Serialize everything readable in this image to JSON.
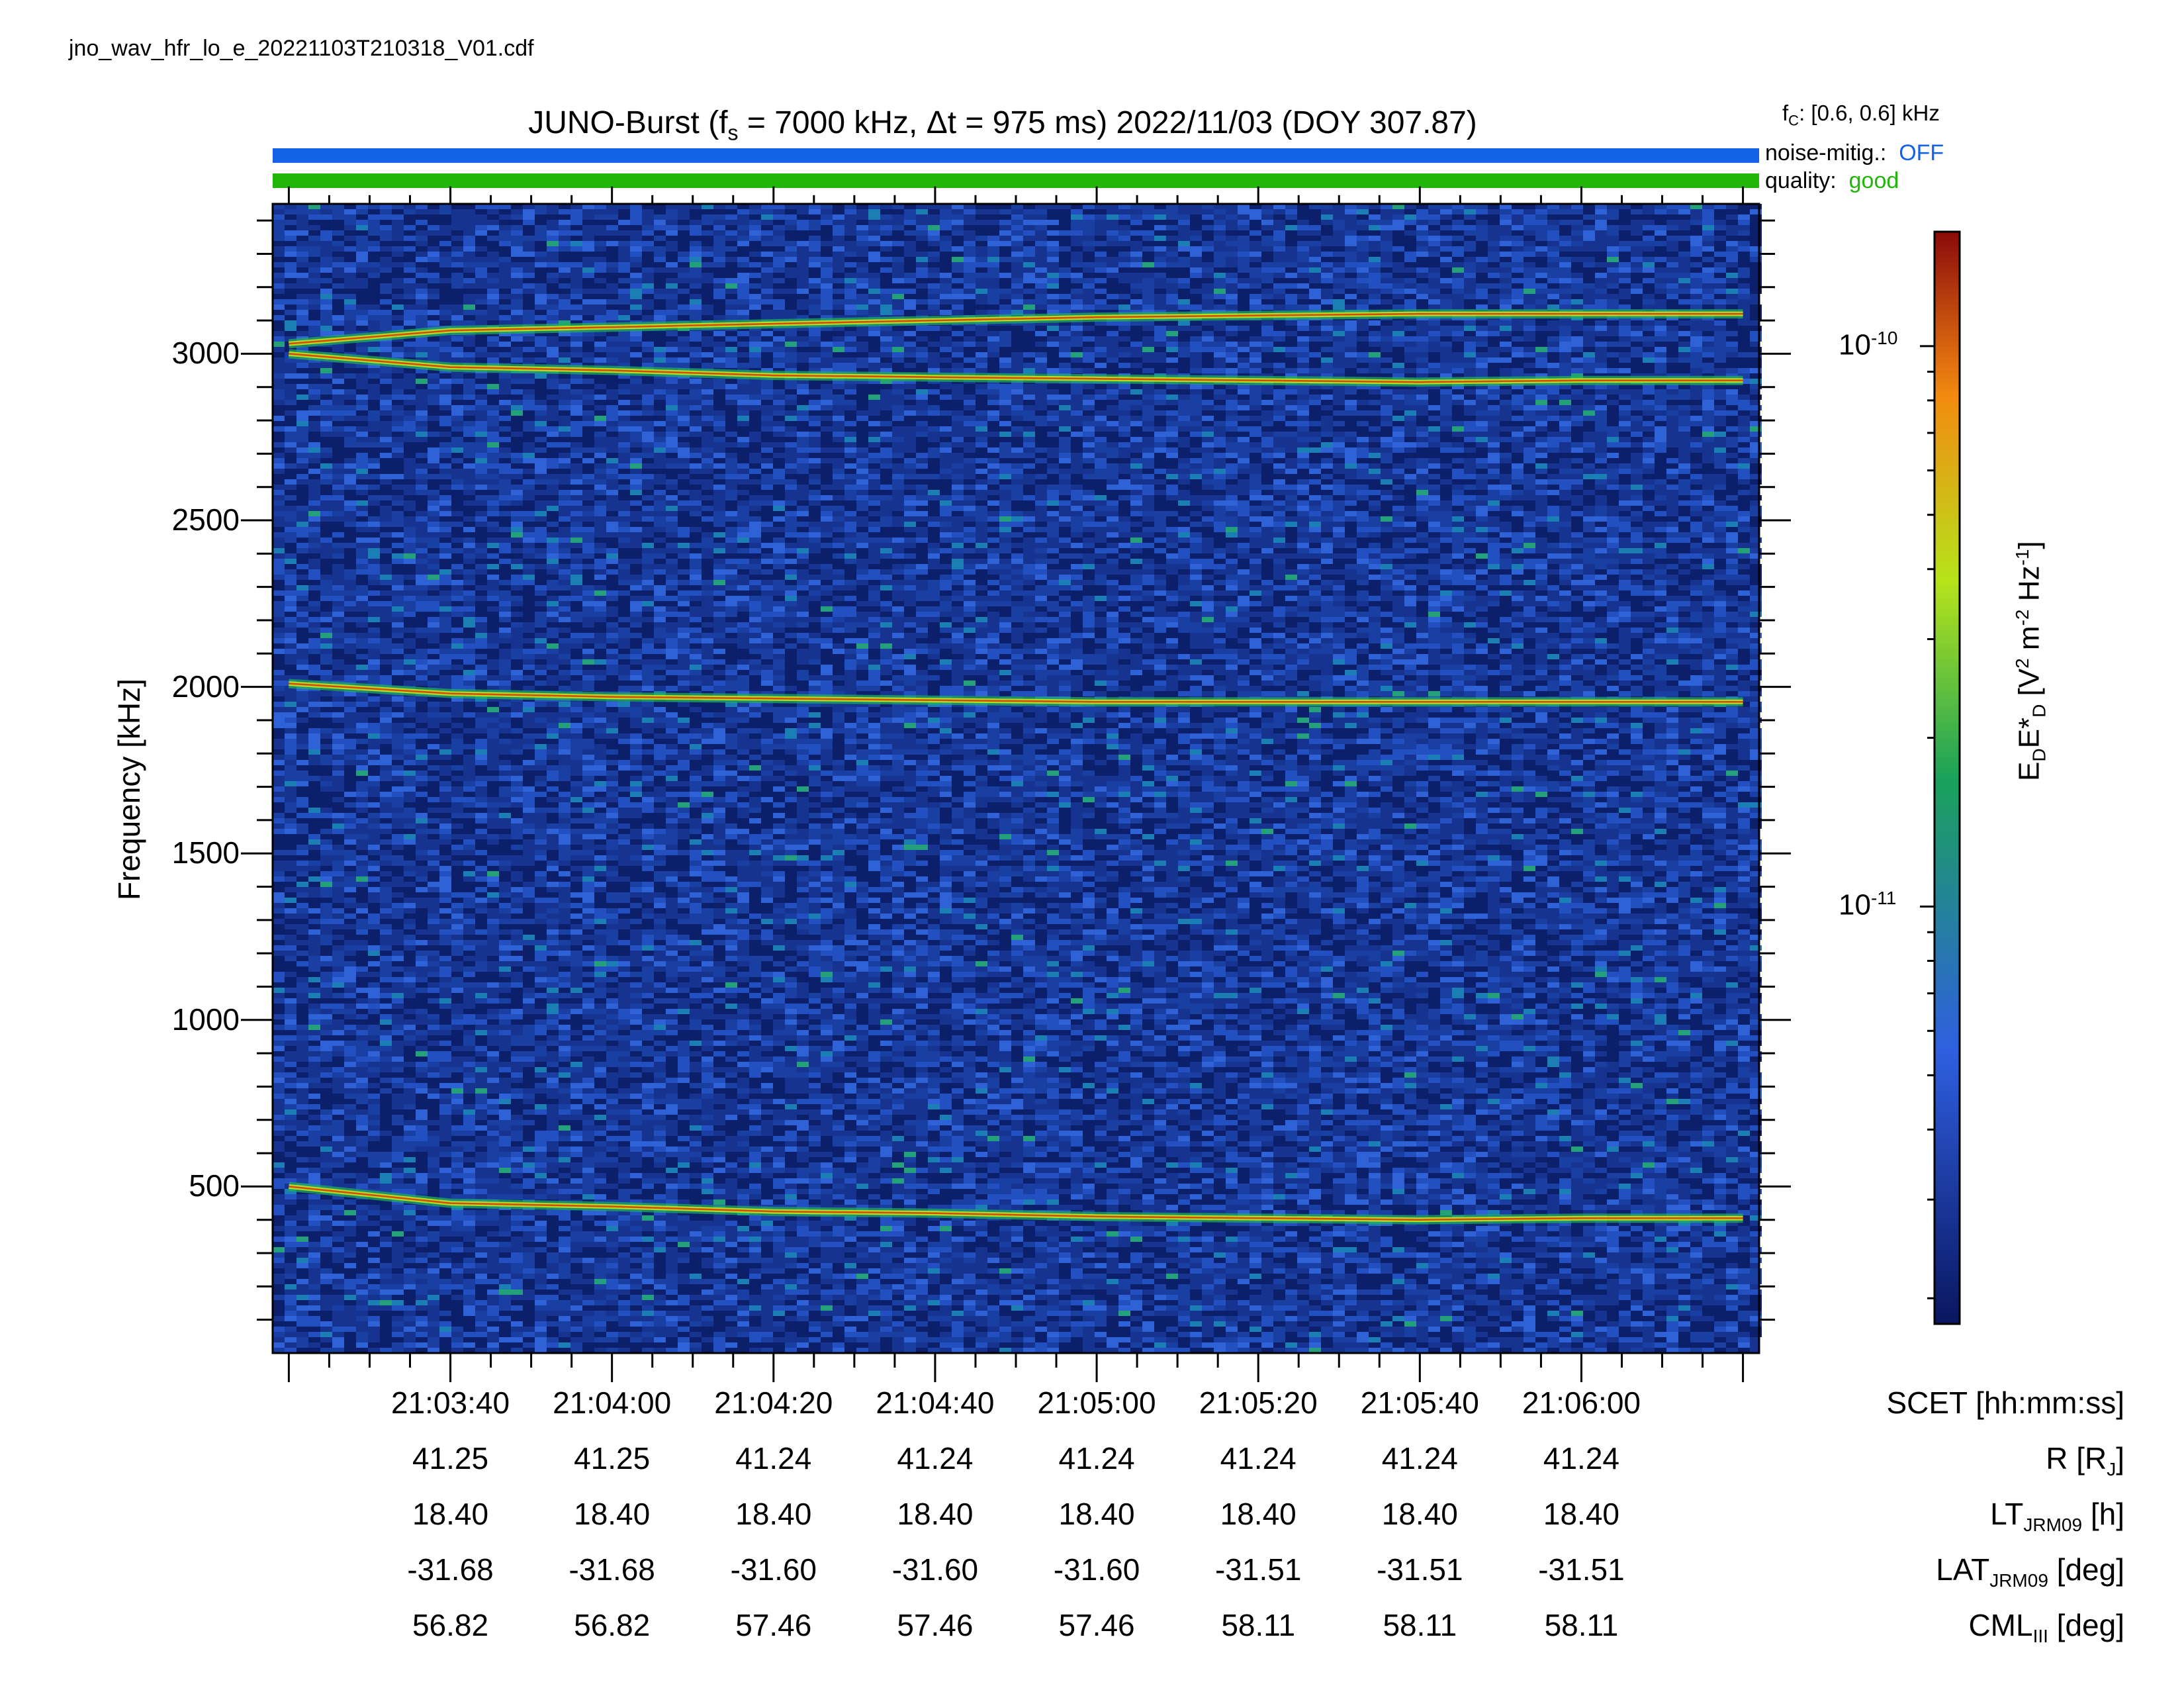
{
  "filename": "jno_wav_hfr_lo_e_20221103T210318_V01.cdf",
  "title": {
    "prefix": "JUNO-Burst (f",
    "fs_sub": "s",
    "middle": " = 7000 kHz, Δt = 975 ms)  2022/11/03 (DOY 307.87)"
  },
  "side_info": {
    "fc_prefix": "f",
    "fc_sub": "C",
    "fc_value": ": [0.6, 0.6] kHz",
    "noise_label": "noise-mitig.:",
    "noise_value": "OFF",
    "quality_label": "quality:",
    "quality_value": "good"
  },
  "colors": {
    "noise_bar": "#1463e6",
    "quality_bar": "#22b60a",
    "noise_text": "#1463e6",
    "quality_text": "#22b60a"
  },
  "chart_data": {
    "type": "heatmap",
    "xlabel": "SCET [hh:mm:ss]",
    "ylabel": "Frequency [kHz]",
    "x_range": [
      "21:03:18",
      "21:06:22"
    ],
    "ylim": [
      0,
      3450
    ],
    "x_ticks": [
      "21:03:40",
      "21:04:00",
      "21:04:20",
      "21:04:40",
      "21:05:00",
      "21:05:20",
      "21:05:40",
      "21:06:00"
    ],
    "y_ticks": [
      500,
      1000,
      1500,
      2000,
      2500,
      3000
    ],
    "y_tick_labels": [
      "500",
      "1000",
      "1500",
      "2000",
      "2500",
      "3000"
    ],
    "colorbar": {
      "label_main": "E",
      "label_sub1": "D",
      "label_mid": "E*",
      "label_sub2": "D",
      "label_units_a": " [V",
      "label_sup1": "2",
      "label_units_b": " m",
      "label_sup2": "-2",
      "label_units_c": " Hz",
      "label_sup3": "-1",
      "label_units_d": "]",
      "scale": "log",
      "range": [
        1.8e-12,
        1.6e-10
      ],
      "ticks": [
        {
          "base": "10",
          "exp": "-10",
          "value": 1e-10
        },
        {
          "base": "10",
          "exp": "-11",
          "value": 1e-11
        }
      ],
      "colors": [
        "#0a1660",
        "#2f5fe0",
        "#1aa25a",
        "#b6e31a",
        "#f38a10",
        "#8b0a0a"
      ]
    },
    "emission_lines": [
      {
        "name": "upper band near 3100 kHz",
        "points": [
          [
            "21:03:20",
            3030
          ],
          [
            "21:03:40",
            3070
          ],
          [
            "21:04:00",
            3080
          ],
          [
            "21:04:20",
            3090
          ],
          [
            "21:04:40",
            3100
          ],
          [
            "21:05:00",
            3110
          ],
          [
            "21:05:20",
            3115
          ],
          [
            "21:05:40",
            3120
          ],
          [
            "21:06:00",
            3120
          ],
          [
            "21:06:20",
            3120
          ]
        ]
      },
      {
        "name": "band near 2950 kHz",
        "points": [
          [
            "21:03:20",
            3000
          ],
          [
            "21:03:40",
            2960
          ],
          [
            "21:04:00",
            2950
          ],
          [
            "21:04:20",
            2935
          ],
          [
            "21:04:40",
            2930
          ],
          [
            "21:05:00",
            2925
          ],
          [
            "21:05:20",
            2920
          ],
          [
            "21:05:40",
            2915
          ],
          [
            "21:06:00",
            2920
          ],
          [
            "21:06:20",
            2920
          ]
        ]
      },
      {
        "name": "band near 1960 kHz",
        "points": [
          [
            "21:03:20",
            2010
          ],
          [
            "21:03:40",
            1980
          ],
          [
            "21:04:00",
            1970
          ],
          [
            "21:04:20",
            1965
          ],
          [
            "21:04:40",
            1960
          ],
          [
            "21:05:00",
            1955
          ],
          [
            "21:05:20",
            1955
          ],
          [
            "21:05:40",
            1955
          ],
          [
            "21:06:00",
            1955
          ],
          [
            "21:06:20",
            1955
          ]
        ]
      },
      {
        "name": "band near 420 kHz",
        "points": [
          [
            "21:03:20",
            500
          ],
          [
            "21:03:40",
            450
          ],
          [
            "21:04:00",
            440
          ],
          [
            "21:04:20",
            425
          ],
          [
            "21:04:40",
            420
          ],
          [
            "21:05:00",
            410
          ],
          [
            "21:05:20",
            405
          ],
          [
            "21:05:40",
            400
          ],
          [
            "21:06:00",
            405
          ],
          [
            "21:06:20",
            405
          ]
        ]
      }
    ]
  },
  "ephemeris": {
    "rows": [
      {
        "label_main": "SCET [hh:mm:ss]",
        "label_sub": "",
        "label_tail": "",
        "values": [
          "21:03:40",
          "21:04:00",
          "21:04:20",
          "21:04:40",
          "21:05:00",
          "21:05:20",
          "21:05:40",
          "21:06:00"
        ]
      },
      {
        "label_main": "R [R",
        "label_sub": "J",
        "label_tail": "]",
        "values": [
          "41.25",
          "41.25",
          "41.24",
          "41.24",
          "41.24",
          "41.24",
          "41.24",
          "41.24"
        ]
      },
      {
        "label_main": "LT",
        "label_sub": "JRM09",
        "label_tail": " [h]",
        "values": [
          "18.40",
          "18.40",
          "18.40",
          "18.40",
          "18.40",
          "18.40",
          "18.40",
          "18.40"
        ]
      },
      {
        "label_main": "LAT",
        "label_sub": "JRM09",
        "label_tail": " [deg]",
        "values": [
          "-31.68",
          "-31.68",
          "-31.60",
          "-31.60",
          "-31.60",
          "-31.51",
          "-31.51",
          "-31.51"
        ]
      },
      {
        "label_main": "CML",
        "label_sub": "III",
        "label_tail": " [deg]",
        "values": [
          "56.82",
          "56.82",
          "57.46",
          "57.46",
          "57.46",
          "58.11",
          "58.11",
          "58.11"
        ]
      }
    ]
  }
}
